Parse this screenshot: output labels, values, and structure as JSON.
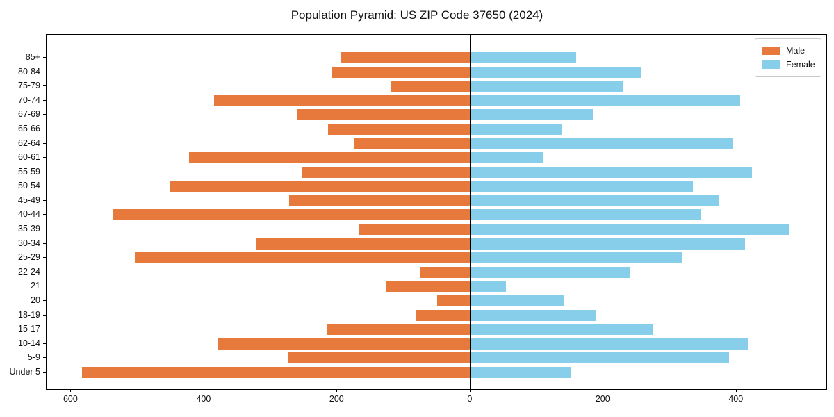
{
  "chart_data": {
    "type": "bar",
    "subtype": "population-pyramid",
    "title": "Population Pyramid: US ZIP Code 37650 (2024)",
    "categories": [
      "85+",
      "80-84",
      "75-79",
      "70-74",
      "67-69",
      "65-66",
      "62-64",
      "60-61",
      "55-59",
      "50-54",
      "45-49",
      "40-44",
      "35-39",
      "30-34",
      "25-29",
      "22-24",
      "21",
      "20",
      "18-19",
      "15-17",
      "10-14",
      "5-9",
      "Under 5"
    ],
    "series": [
      {
        "name": "Male",
        "color": "#e8793c",
        "side": "left",
        "values": [
          195,
          209,
          120,
          385,
          261,
          214,
          175,
          423,
          254,
          452,
          272,
          538,
          167,
          323,
          504,
          76,
          127,
          50,
          82,
          216,
          379,
          274,
          584
        ]
      },
      {
        "name": "Female",
        "color": "#87ceeb",
        "side": "right",
        "values": [
          159,
          257,
          230,
          405,
          184,
          138,
          395,
          109,
          423,
          334,
          373,
          347,
          479,
          413,
          319,
          239,
          53,
          141,
          188,
          275,
          417,
          389,
          151
        ]
      }
    ],
    "x_ticks": [
      {
        "value": -600,
        "label": "600"
      },
      {
        "value": -400,
        "label": "400"
      },
      {
        "value": -200,
        "label": "200"
      },
      {
        "value": 0,
        "label": "0"
      },
      {
        "value": 200,
        "label": "200"
      },
      {
        "value": 400,
        "label": "400"
      }
    ],
    "xlim": [
      -637,
      535
    ],
    "grid": false,
    "legend": {
      "position": "top-right",
      "entries": [
        "Male",
        "Female"
      ]
    },
    "axis_color": "#000000"
  }
}
